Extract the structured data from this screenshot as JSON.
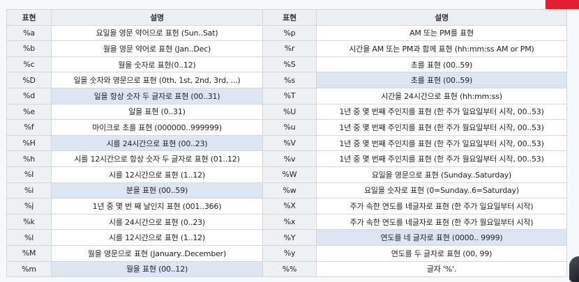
{
  "headers": {
    "code1": "표현",
    "desc1": "설명",
    "code2": "표현",
    "desc2": "설명"
  },
  "rows": [
    {
      "c1": "%a",
      "d1": "요일을 영문 약어으로 표현 (Sun..Sat)",
      "c2": "%p",
      "d2": "AM 또는 PM를 표현",
      "hl1": false,
      "hl2": false
    },
    {
      "c1": "%b",
      "d1": "월을 영문 약어로 표현 (Jan..Dec)",
      "c2": "%r",
      "d2": "시간을 AM 또는 PM과 함께 표현  (hh:mm:ss AM or PM)",
      "hl1": false,
      "hl2": false
    },
    {
      "c1": "%c",
      "d1": "월을 숫자로 표현(0..12)",
      "c2": "%S",
      "d2": "초를 표현 (00..59)",
      "hl1": false,
      "hl2": false
    },
    {
      "c1": "%D",
      "d1": "일을 숫자와 영문으로 표현 (0th, 1st, 2nd, 3rd, ...)",
      "c2": "%s",
      "d2": "초를 표현 (00..59)",
      "hl1": false,
      "hl2": true
    },
    {
      "c1": "%d",
      "d1": "일을 항상 숫자 두 글자로 표현 (00..31)",
      "c2": "%T",
      "d2": "시간을 24시간으로 표현 (hh:mm:ss)",
      "hl1": true,
      "hl2": false
    },
    {
      "c1": "%e",
      "d1": "일을 표현 (0..31)",
      "c2": "%U",
      "d2": "1년 중 몇 번째 주인지를 표현 (한 주가 일요일부터 시작, 00..53)",
      "hl1": false,
      "hl2": false
    },
    {
      "c1": "%f",
      "d1": "마이크로 초를 표현 (000000..999999)",
      "c2": "%u",
      "d2": "1년 중 몇 번째 주인지를 표현 (한 주가 월요일부터 시작, 00..53)",
      "hl1": false,
      "hl2": false
    },
    {
      "c1": "%H",
      "d1": "시를 24시간으로 표현 (00..23)",
      "c2": "%V",
      "d2": "1년 중 몇 번째 주인지를 표현 (한 주가 일요일부터 시작, 00..53)",
      "hl1": true,
      "hl2": false
    },
    {
      "c1": "%h",
      "d1": "시를 12시간으로 항상 숫자 두 글자로 표현 (01..12)",
      "c2": "%v",
      "d2": "1년 중 몇 번째 주인지를 표현 (한 주가 월요일부터 시작, 00..53)",
      "hl1": false,
      "hl2": false
    },
    {
      "c1": "%I",
      "d1": "시를 12시간으로 표현 (1..12)",
      "c2": "%W",
      "d2": "요일을 영문으로 표현 (Sunday..Saturday)",
      "hl1": false,
      "hl2": false
    },
    {
      "c1": "%i",
      "d1": "분을 표현 (00..59)",
      "c2": "%w",
      "d2": "요일을 숫자로 표현 (0=Sunday..6=Saturday)",
      "hl1": true,
      "hl2": false
    },
    {
      "c1": "%j",
      "d1": "1년 중 몇 번 째 날인지 표현 (001..366)",
      "c2": "%X",
      "d2": "주가 속한 연도를 네글자로 표현 (한 주가 일요일부터 시작)",
      "hl1": false,
      "hl2": false
    },
    {
      "c1": "%k",
      "d1": "시를 24시간으로 표현 (0..23)",
      "c2": "%x",
      "d2": "주가 속한 연도를 네글자로 표현 (한 주가 월요일부터 시작)",
      "hl1": false,
      "hl2": false
    },
    {
      "c1": "%l",
      "d1": "시를 12시간으로 표현 (1..12)",
      "c2": "%Y",
      "d2": "연도를 네 글자로 표현 (0000.. 9999)",
      "hl1": false,
      "hl2": true
    },
    {
      "c1": "%M",
      "d1": "월을 영문으로 표현 (January..December)",
      "c2": "%y",
      "d2": "연도를 두 글자로 표현 (00, 99)",
      "hl1": false,
      "hl2": false
    },
    {
      "c1": "%m",
      "d1": "월을 표현 (00..12)",
      "c2": "%%",
      "d2": "글자 '%'.",
      "hl1": true,
      "hl2": false
    }
  ]
}
